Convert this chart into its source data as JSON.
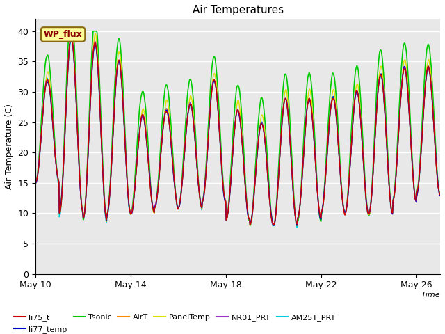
{
  "title": "Air Temperatures",
  "xlabel": "Time",
  "ylabel": "Air Temperature (C)",
  "ylim": [
    0,
    42
  ],
  "yticks": [
    0,
    5,
    10,
    15,
    20,
    25,
    30,
    35,
    40
  ],
  "plot_bg_color": "#e8e8e8",
  "series": {
    "li75_t": {
      "color": "#cc0000",
      "lw": 1.0
    },
    "li77_temp": {
      "color": "#0000cc",
      "lw": 1.0
    },
    "Tsonic": {
      "color": "#00cc00",
      "lw": 1.2
    },
    "AirT": {
      "color": "#ff8800",
      "lw": 1.0
    },
    "PanelTemp": {
      "color": "#dddd00",
      "lw": 1.0
    },
    "NR01_PRT": {
      "color": "#9933cc",
      "lw": 1.0
    },
    "AM25T_PRT": {
      "color": "#00ccdd",
      "lw": 1.2
    }
  },
  "x_ticks_days": [
    10,
    14,
    18,
    22,
    26
  ],
  "x_tick_labels": [
    "May 10",
    "May 14",
    "May 18",
    "May 22",
    "May 26"
  ],
  "annotation_text": "WP_flux",
  "legend_items": [
    {
      "label": "li75_t",
      "color": "#cc0000"
    },
    {
      "label": "li77_temp",
      "color": "#0000cc"
    },
    {
      "label": "Tsonic",
      "color": "#00cc00"
    },
    {
      "label": "AirT",
      "color": "#ff8800"
    },
    {
      "label": "PanelTemp",
      "color": "#dddd00"
    },
    {
      "label": "NR01_PRT",
      "color": "#9933cc"
    },
    {
      "label": "AM25T_PRT",
      "color": "#00ccdd"
    }
  ]
}
